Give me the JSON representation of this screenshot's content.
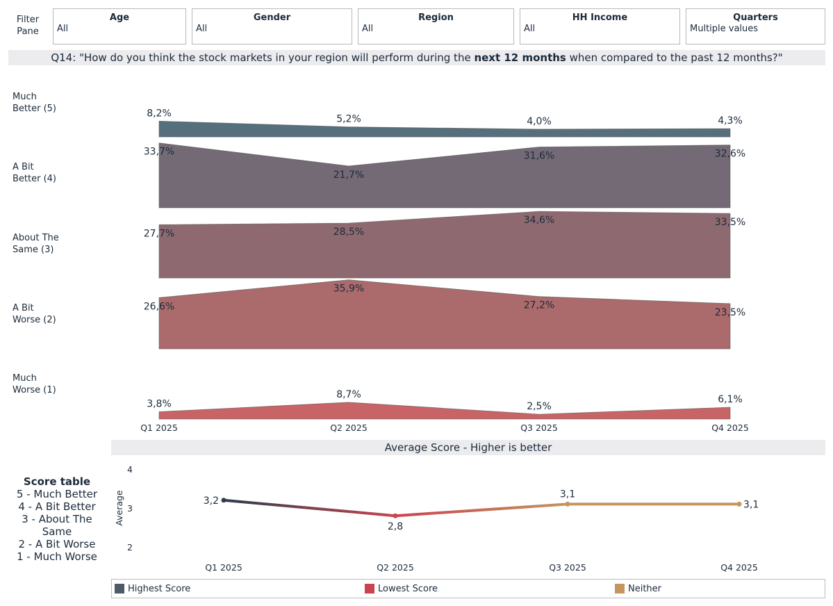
{
  "filter_pane": {
    "label_line1": "Filter",
    "label_line2": "Pane",
    "filters": [
      {
        "title": "Age",
        "value": "All"
      },
      {
        "title": "Gender",
        "value": "All"
      },
      {
        "title": "Region",
        "value": "All"
      },
      {
        "title": "HH Income",
        "value": "All"
      },
      {
        "title": "Quarters",
        "value": "Multiple values"
      }
    ]
  },
  "question": {
    "prefix": "Q14: \"How do you think the stock markets in your region will perform during the ",
    "bold": "next 12 months",
    "suffix": " when compared to the past 12 months?\""
  },
  "rows": [
    {
      "line1": "Much",
      "line2": "Better (5)"
    },
    {
      "line1": "A Bit",
      "line2": "Better (4)"
    },
    {
      "line1": "About The",
      "line2": "Same (3)"
    },
    {
      "line1": "A Bit",
      "line2": "Worse (2)"
    },
    {
      "line1": "Much",
      "line2": "Worse (1)"
    }
  ],
  "score_table": {
    "title": "Score table",
    "lines": [
      "5 - Much Better",
      "4 - A Bit Better",
      "3 - About The",
      "Same",
      "2 - A Bit Worse",
      "1 - Much Worse"
    ]
  },
  "legend": [
    {
      "label": "Highest Score",
      "color": "#4d5b69"
    },
    {
      "label": "Lowest Score",
      "color": "#c9444f"
    },
    {
      "label": "Neither",
      "color": "#c4955f"
    }
  ],
  "chart_data": [
    {
      "type": "area",
      "title": "",
      "categories": [
        "Q1 2025",
        "Q2 2025",
        "Q3 2025",
        "Q4 2025"
      ],
      "ylim": [
        0,
        40
      ],
      "series": [
        {
          "name": "Much Better (5)",
          "values": [
            8.2,
            5.2,
            4.0,
            4.3
          ],
          "labels": [
            "8,2%",
            "5,2%",
            "4,0%",
            "4,3%"
          ],
          "color": "#566f7c"
        },
        {
          "name": "A Bit Better (4)",
          "values": [
            33.7,
            21.7,
            31.6,
            32.6
          ],
          "labels": [
            "33,7%",
            "21,7%",
            "31,6%",
            "32,6%"
          ],
          "color": "#736a75"
        },
        {
          "name": "About The Same (3)",
          "values": [
            27.7,
            28.5,
            34.6,
            33.5
          ],
          "labels": [
            "27,7%",
            "28,5%",
            "34,6%",
            "33,5%"
          ],
          "color": "#8e6a70"
        },
        {
          "name": "A Bit Worse (2)",
          "values": [
            26.6,
            35.9,
            27.2,
            23.5
          ],
          "labels": [
            "26,6%",
            "35,9%",
            "27,2%",
            "23,5%"
          ],
          "color": "#ab6a6c"
        },
        {
          "name": "Much Worse (1)",
          "values": [
            3.8,
            8.7,
            2.5,
            6.1
          ],
          "labels": [
            "3,8%",
            "8,7%",
            "2,5%",
            "6,1%"
          ],
          "color": "#c86466"
        }
      ]
    },
    {
      "type": "line",
      "title": "Average Score - Higher is better",
      "ylabel": "Average",
      "categories": [
        "Q1 2025",
        "Q2 2025",
        "Q3 2025",
        "Q4 2025"
      ],
      "values": [
        3.2,
        2.8,
        3.1,
        3.1
      ],
      "labels": [
        "3,2",
        "2,8",
        "3,1",
        "3,1"
      ],
      "status": [
        "Highest Score",
        "Lowest Score",
        "Neither",
        "Neither"
      ],
      "point_colors": [
        "#2d3e4c",
        "#c9444f",
        "#c4955f",
        "#c4955f"
      ],
      "yticks": [
        "4",
        "3",
        "2"
      ],
      "ylim": [
        2,
        4
      ]
    }
  ]
}
